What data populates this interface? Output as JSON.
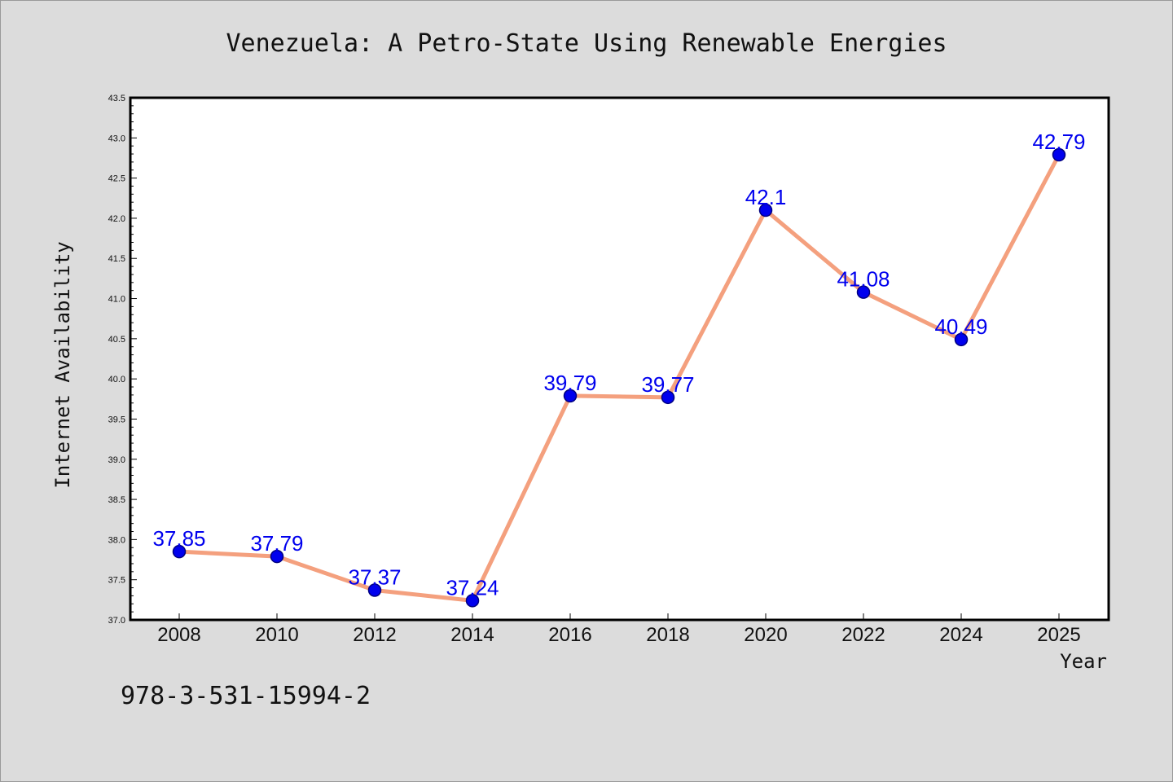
{
  "chart_data": {
    "type": "line",
    "title": "Venezuela: A Petro-State Using Renewable Energies",
    "xlabel": "Year",
    "ylabel": "Internet Availability",
    "categories": [
      "2008",
      "2010",
      "2012",
      "2014",
      "2016",
      "2018",
      "2020",
      "2022",
      "2024",
      "2025"
    ],
    "values": [
      37.85,
      37.79,
      37.37,
      37.24,
      39.79,
      39.77,
      42.1,
      41.08,
      40.49,
      42.79
    ],
    "data_labels": [
      "37.85",
      "37.79",
      "37.37",
      "37.24",
      "39.79",
      "39.77",
      "42.1",
      "41.08",
      "40.49",
      "42.79"
    ],
    "ylim": [
      37.0,
      43.5
    ],
    "y_ticks": [
      "37.0",
      "37.5",
      "38.0",
      "38.5",
      "39.0",
      "39.5",
      "40.0",
      "40.5",
      "41.0",
      "41.5",
      "42.0",
      "42.5",
      "43.0",
      "43.5"
    ],
    "grid": false,
    "legend": "none",
    "colors": {
      "line": "#f4a07e",
      "marker": "#0000ee",
      "marker_edge": "#000080",
      "data_label": "#0000ee",
      "background": "#dcdcdc",
      "plot_background": "#ffffff"
    }
  },
  "footnote": "978-3-531-15994-2"
}
